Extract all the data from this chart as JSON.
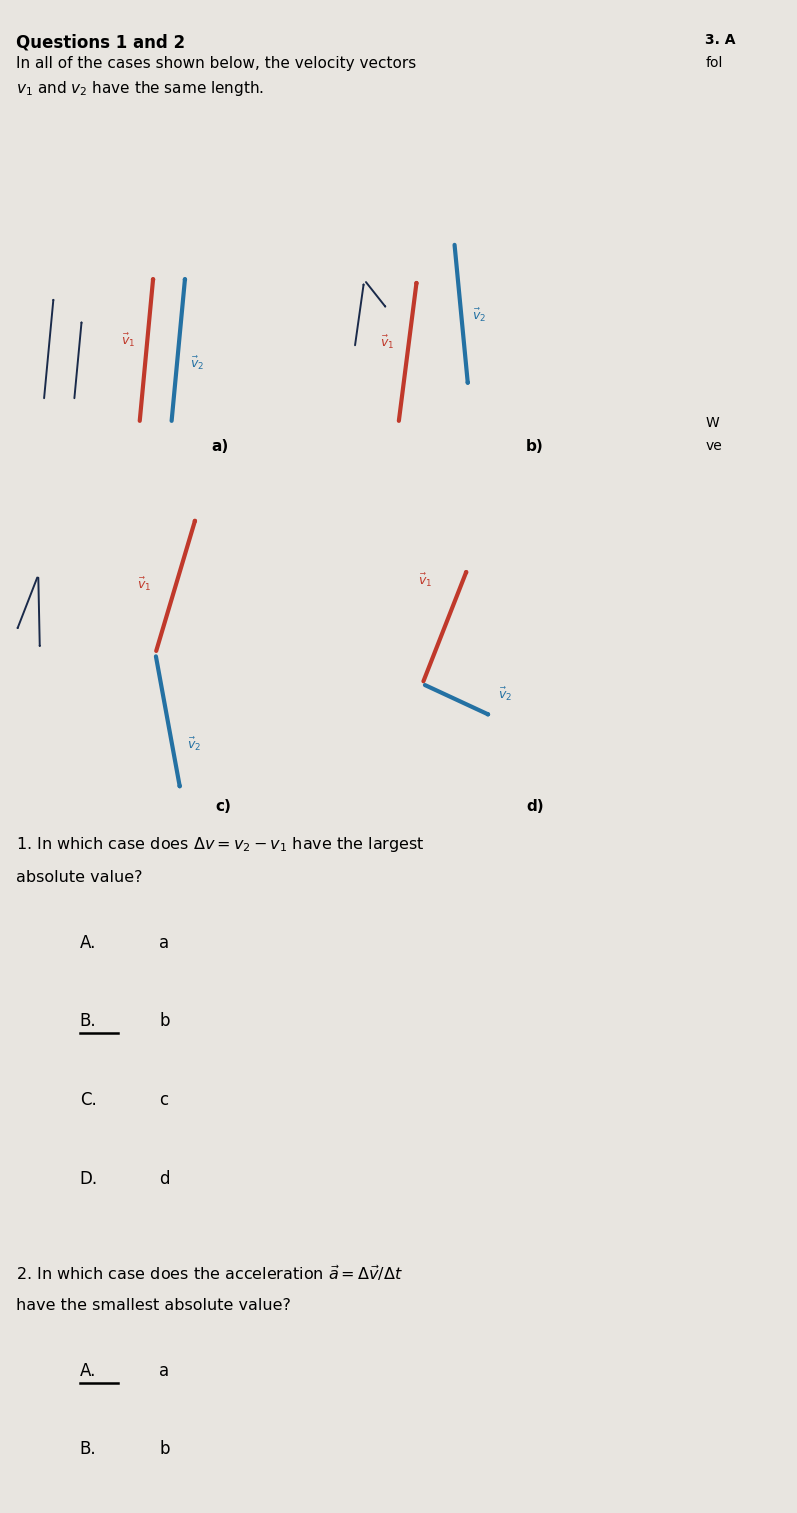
{
  "bg_color": "#e8e5e0",
  "red_color": "#c0392b",
  "blue_color": "#2471a3",
  "dark_blue_color": "#1a2a4a",
  "choices": [
    "A.",
    "B.",
    "C.",
    "D."
  ],
  "choice_vals": [
    "a",
    "b",
    "c",
    "d"
  ],
  "underline_q1": "B.",
  "underline_q2": "A."
}
